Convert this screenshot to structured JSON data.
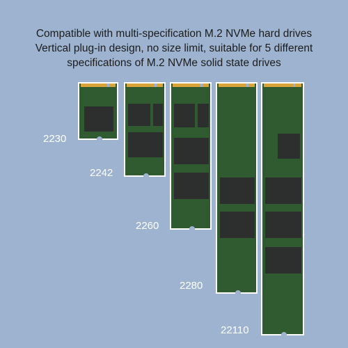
{
  "headline": {
    "line1": "Compatible with multi-specification M.2 NVMe hard drives",
    "line2": "Vertical plug-in design, no size limit, suitable for 5 different",
    "line3": "specifications of M.2 NVMe solid state drives"
  },
  "drives": [
    {
      "label": "2230"
    },
    {
      "label": "2242"
    },
    {
      "label": "2260"
    },
    {
      "label": "2280"
    },
    {
      "label": "22110"
    }
  ],
  "colors": {
    "background": "#9db3cf",
    "pcb": "#305b30",
    "contacts": "#d9a53a",
    "chip": "#2d2f2f"
  }
}
